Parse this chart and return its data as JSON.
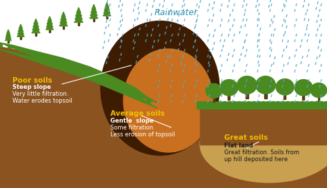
{
  "bg_color": "#ffffff",
  "soil_brown": "#8B5320",
  "soil_dark_brown": "#3d1c02",
  "soil_orange": "#c87020",
  "soil_amber": "#d08030",
  "soil_tan": "#c8a050",
  "soil_mid_brown": "#7a4020",
  "rain_color": "#55aacc",
  "grass_green": "#4a8a20",
  "grass_dark": "#2a6010",
  "tree_dark": "#1a5010",
  "tree_trunk": "#5a3a10",
  "label_yellow": "#f0c000",
  "label_white": "#ffffff",
  "label_dark": "#1a1a1a",
  "rainwater_color": "#3090b0",
  "rainwater_label": "Rainwater",
  "poor_soils_title": "Poor soils",
  "poor_soils_lines": [
    "Steep slope",
    "Very little filtration.",
    "Water erodes topsoil"
  ],
  "avg_soils_title": "Average soils",
  "avg_soils_lines": [
    "Gentle  slope",
    "Some filtration",
    "Less erosion of topsoil"
  ],
  "great_soils_title": "Great soils",
  "great_soils_lines": [
    "Flat land",
    "Great filtration. Soils from",
    "up hill deposited here"
  ],
  "figsize": [
    4.74,
    2.73
  ],
  "dpi": 100
}
